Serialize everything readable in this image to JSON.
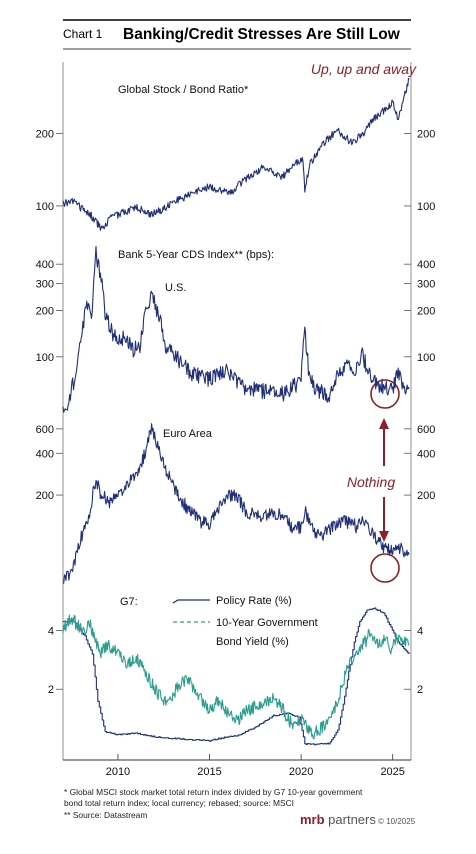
{
  "header": {
    "chart_number": "Chart 1",
    "title": "Banking/Credit Stresses Are Still Low"
  },
  "annotations": {
    "top_callout": "Up, up and away",
    "middle_callout": "Nothing"
  },
  "colors": {
    "series_navy": "#1f2f7a",
    "series_teal": "#2a9d8f",
    "accent_red": "#8e1f26",
    "rule": "#000000",
    "axis": "#333333"
  },
  "footnotes": {
    "line1": "*  Global MSCI stock market total return index divided by G7 10-year government",
    "line2": "   bond total return index; local currency; rebased; source: MSCI",
    "line3": "** Source: Datastream"
  },
  "brand": {
    "name": "mrb",
    "suffix": " partners",
    "copyright": " © 10/2025"
  },
  "chart_data": [
    {
      "type": "line",
      "title": "Global Stock / Bond Ratio*",
      "scale": "log",
      "yticks": [
        100,
        200
      ],
      "ylim": [
        75,
        340
      ],
      "x": [
        2007.0,
        2007.5,
        2008.0,
        2008.5,
        2009.0,
        2009.2,
        2009.5,
        2010.0,
        2010.5,
        2011.0,
        2011.7,
        2012.5,
        2013.0,
        2014.0,
        2015.0,
        2015.5,
        2016.2,
        2017.0,
        2018.0,
        2018.9,
        2019.5,
        2020.1,
        2020.2,
        2020.5,
        2021.0,
        2021.5,
        2022.0,
        2022.8,
        2023.5,
        2024.0,
        2024.5,
        2025.0,
        2025.3,
        2025.6,
        2025.9
      ],
      "values": [
        102,
        105,
        98,
        92,
        82,
        80,
        88,
        92,
        95,
        99,
        92,
        97,
        103,
        112,
        120,
        116,
        114,
        130,
        146,
        130,
        146,
        158,
        115,
        150,
        172,
        192,
        205,
        182,
        205,
        232,
        248,
        268,
        225,
        282,
        335
      ],
      "legend": "none",
      "grid": false
    },
    {
      "type": "line",
      "title": "Bank 5-Year CDS Index** (bps):",
      "subtitle": "U.S.",
      "scale": "log",
      "yticks": [
        100,
        200,
        300,
        400
      ],
      "ylim": [
        40,
        480
      ],
      "x": [
        2007.0,
        2007.4,
        2007.7,
        2008.0,
        2008.3,
        2008.6,
        2008.8,
        2009.0,
        2009.3,
        2009.6,
        2010.0,
        2010.4,
        2010.8,
        2011.2,
        2011.6,
        2011.9,
        2012.2,
        2012.6,
        2013.0,
        2013.5,
        2014.0,
        2015.0,
        2016.0,
        2016.5,
        2017.0,
        2018.0,
        2019.0,
        2020.0,
        2020.2,
        2020.4,
        2020.8,
        2021.5,
        2022.0,
        2022.5,
        2023.0,
        2023.3,
        2023.8,
        2024.5,
        2025.0,
        2025.3,
        2025.6,
        2025.9
      ],
      "values": [
        45,
        55,
        80,
        130,
        230,
        190,
        480,
        360,
        190,
        150,
        125,
        140,
        110,
        120,
        205,
        250,
        190,
        120,
        105,
        90,
        78,
        72,
        82,
        68,
        62,
        60,
        58,
        70,
        145,
        85,
        62,
        56,
        75,
        88,
        82,
        105,
        72,
        64,
        62,
        80,
        64,
        62
      ],
      "legend": "none",
      "grid": false
    },
    {
      "type": "line",
      "subtitle": "Euro Area",
      "scale": "log",
      "yticks": [
        200,
        400,
        600
      ],
      "ylim": [
        45,
        650
      ],
      "x": [
        2007.0,
        2007.4,
        2007.7,
        2008.0,
        2008.4,
        2008.8,
        2009.0,
        2009.5,
        2010.0,
        2010.5,
        2011.0,
        2011.5,
        2011.8,
        2012.0,
        2012.3,
        2012.6,
        2013.0,
        2013.5,
        2014.0,
        2014.5,
        2015.0,
        2015.5,
        2016.0,
        2016.5,
        2017.0,
        2018.0,
        2018.8,
        2019.5,
        2020.0,
        2020.2,
        2020.5,
        2021.0,
        2022.0,
        2022.5,
        2023.0,
        2023.3,
        2024.0,
        2024.5,
        2025.0,
        2025.3,
        2025.9
      ],
      "values": [
        48,
        55,
        70,
        100,
        130,
        260,
        210,
        180,
        200,
        240,
        280,
        400,
        600,
        550,
        380,
        300,
        240,
        180,
        150,
        130,
        125,
        165,
        200,
        200,
        150,
        140,
        150,
        120,
        115,
        160,
        120,
        100,
        125,
        130,
        120,
        130,
        100,
        85,
        80,
        85,
        75
      ],
      "legend": "none",
      "grid": false
    },
    {
      "type": "line",
      "title": "G7:",
      "scale": "linear",
      "yticks": [
        2,
        4
      ],
      "ylim": [
        0,
        4.9
      ],
      "legend": "top-center",
      "grid": false,
      "series": [
        {
          "name": "Policy Rate (%)",
          "step": true,
          "x": [
            2007.0,
            2007.6,
            2008.2,
            2008.6,
            2008.9,
            2009.3,
            2010.0,
            2011.0,
            2012.0,
            2013.0,
            2014.0,
            2015.0,
            2015.5,
            2016.5,
            2017.5,
            2018.5,
            2019.3,
            2019.9,
            2020.2,
            2020.5,
            2021.5,
            2022.0,
            2022.3,
            2022.6,
            2022.9,
            2023.2,
            2023.6,
            2024.0,
            2024.5,
            2024.9,
            2025.3,
            2025.9
          ],
          "values": [
            4.3,
            4.3,
            3.8,
            3.2,
            1.6,
            0.55,
            0.45,
            0.5,
            0.38,
            0.33,
            0.28,
            0.25,
            0.32,
            0.42,
            0.7,
            1.1,
            1.18,
            1.05,
            0.15,
            0.12,
            0.15,
            0.6,
            1.5,
            2.6,
            3.6,
            4.3,
            4.7,
            4.75,
            4.6,
            4.1,
            3.6,
            3.2
          ]
        },
        {
          "name": "10-Year Government",
          "name2": "Bond Yield (%)",
          "x": [
            2007.0,
            2007.5,
            2008.0,
            2008.5,
            2009.0,
            2009.5,
            2010.0,
            2010.5,
            2011.0,
            2011.5,
            2012.0,
            2012.5,
            2013.0,
            2013.5,
            2014.0,
            2014.5,
            2015.0,
            2015.5,
            2016.0,
            2016.5,
            2017.0,
            2017.5,
            2018.0,
            2018.5,
            2019.0,
            2019.5,
            2020.0,
            2020.3,
            2020.7,
            2021.0,
            2021.5,
            2022.0,
            2022.5,
            2023.0,
            2023.5,
            2023.8,
            2024.2,
            2024.6,
            2024.9,
            2025.3,
            2025.9
          ],
          "values": [
            4.1,
            4.4,
            4.0,
            4.2,
            3.2,
            3.5,
            3.3,
            2.9,
            3.1,
            2.6,
            2.0,
            1.6,
            1.8,
            2.3,
            2.2,
            1.7,
            1.3,
            1.6,
            1.2,
            0.9,
            1.3,
            1.4,
            1.6,
            1.7,
            1.3,
            0.8,
            1.0,
            0.7,
            0.5,
            0.6,
            1.0,
            1.6,
            2.7,
            3.2,
            3.6,
            4.0,
            3.5,
            3.8,
            3.4,
            3.8,
            3.5
          ]
        }
      ]
    }
  ],
  "x_axis": {
    "ticks": [
      "2010",
      "2015",
      "2020",
      "2025"
    ],
    "tick_values": [
      2010,
      2015,
      2020,
      2025
    ],
    "xlim": [
      2007.0,
      2026.0
    ]
  }
}
